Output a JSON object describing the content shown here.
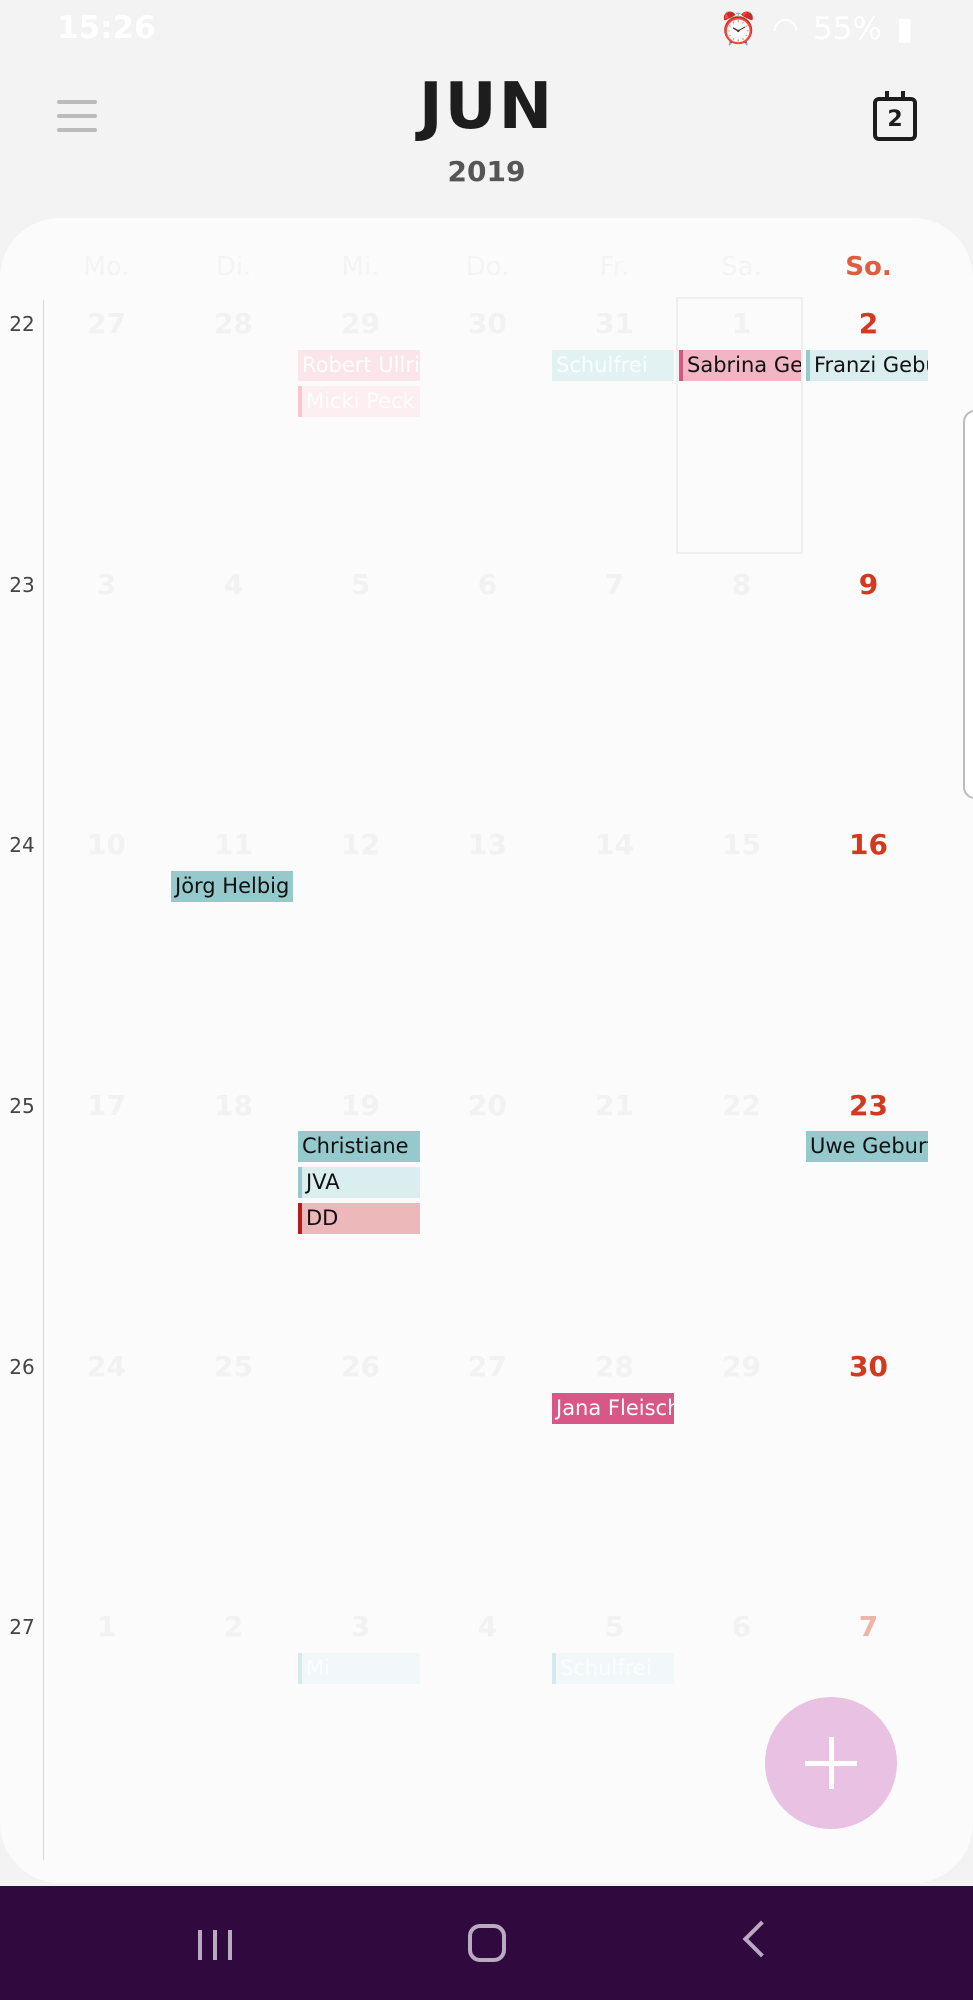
{
  "status_bar": {
    "time": "15:26",
    "battery": "55%",
    "icons": [
      "mi-fit-icon",
      "alarm-icon",
      "mute-icon",
      "wifi-icon",
      "signal-icon",
      "battery-icon"
    ]
  },
  "header": {
    "month": "JUN",
    "year": "2019",
    "today_day": "2"
  },
  "weekdays": [
    "Mo.",
    "Di.",
    "Mi.",
    "Do.",
    "Fr.",
    "Sa.",
    "So."
  ],
  "weeks": [
    {
      "number": "22",
      "days": [
        "27",
        "28",
        "29",
        "30",
        "31",
        "1",
        "2"
      ]
    },
    {
      "number": "23",
      "days": [
        "3",
        "4",
        "5",
        "6",
        "7",
        "8",
        "9"
      ]
    },
    {
      "number": "24",
      "days": [
        "10",
        "11",
        "12",
        "13",
        "14",
        "15",
        "16"
      ]
    },
    {
      "number": "25",
      "days": [
        "17",
        "18",
        "19",
        "20",
        "21",
        "22",
        "23"
      ]
    },
    {
      "number": "26",
      "days": [
        "24",
        "25",
        "26",
        "27",
        "28",
        "29",
        "30"
      ]
    },
    {
      "number": "27",
      "days": [
        "1",
        "2",
        "3",
        "4",
        "5",
        "6",
        "7"
      ]
    }
  ],
  "events": {
    "w22_wed_1": "Robert Ullrich",
    "w22_wed_2": "Micki Peck",
    "w22_fri": "Schulfrei",
    "w22_sat": "Sabrina Geburtstag",
    "w22_sun": "Franzi Geburtstag",
    "w24_tue": "Jörg Helbig",
    "w25_wed_1": "Christiane",
    "w25_wed_2": "JVA",
    "w25_wed_3": "DD",
    "w25_sun": "Uwe Geburtstag",
    "w26_fri": "Jana Fleischer",
    "w27_wed": "Mi",
    "w27_fri": "Schulfrei"
  },
  "colors": {
    "sunday": "#d2391f",
    "navbar": "#300a3f",
    "fab": "#e9c1e3"
  }
}
